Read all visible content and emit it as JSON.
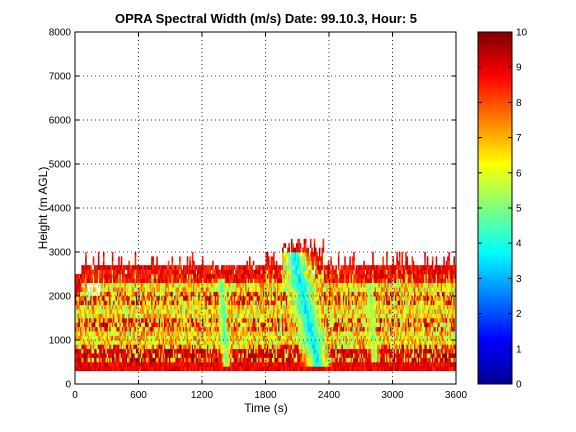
{
  "chart_data": {
    "type": "heatmap",
    "title": "OPRA Spectral Width (m/s)  Date: 99.10.3, Hour: 5",
    "xlabel": "Time (s)",
    "ylabel": "Height (m AGL)",
    "xlim": [
      0,
      3600
    ],
    "ylim": [
      0,
      8000
    ],
    "x_ticks": [
      0,
      600,
      1200,
      1800,
      2400,
      3000,
      3600
    ],
    "x_tick_labels": [
      "0",
      "600",
      "1200",
      "1800",
      "2400",
      "3000",
      "3600"
    ],
    "y_ticks": [
      0,
      1000,
      2000,
      3000,
      4000,
      5000,
      6000,
      7000,
      8000
    ],
    "y_tick_labels": [
      "0",
      "1000",
      "2000",
      "3000",
      "4000",
      "5000",
      "6000",
      "7000",
      "8000"
    ],
    "grid": true,
    "colorbar": {
      "range": [
        0,
        10
      ],
      "ticks": [
        0,
        1,
        2,
        3,
        4,
        5,
        6,
        7,
        8,
        9,
        10
      ],
      "tick_labels": [
        "0",
        "1",
        "2",
        "3",
        "4",
        "5",
        "6",
        "7",
        "8",
        "9",
        "10"
      ],
      "colormap": "jet"
    },
    "data_extent": {
      "height_min": 300,
      "height_top_typical": 2700,
      "height_top_plume": 3300,
      "plume_time_range": [
        1950,
        2350
      ]
    },
    "features": [
      {
        "time": [
          1300,
          1500
        ],
        "height": [
          350,
          2300
        ],
        "width_value": 4.5
      },
      {
        "time": [
          1950,
          2400
        ],
        "height": [
          400,
          2900
        ],
        "width_value": 3.5
      },
      {
        "time": [
          2700,
          2900
        ],
        "height": [
          500,
          2200
        ],
        "width_value": 5
      }
    ],
    "background_width_value": 6.5,
    "edge_width_value": 9.5
  }
}
